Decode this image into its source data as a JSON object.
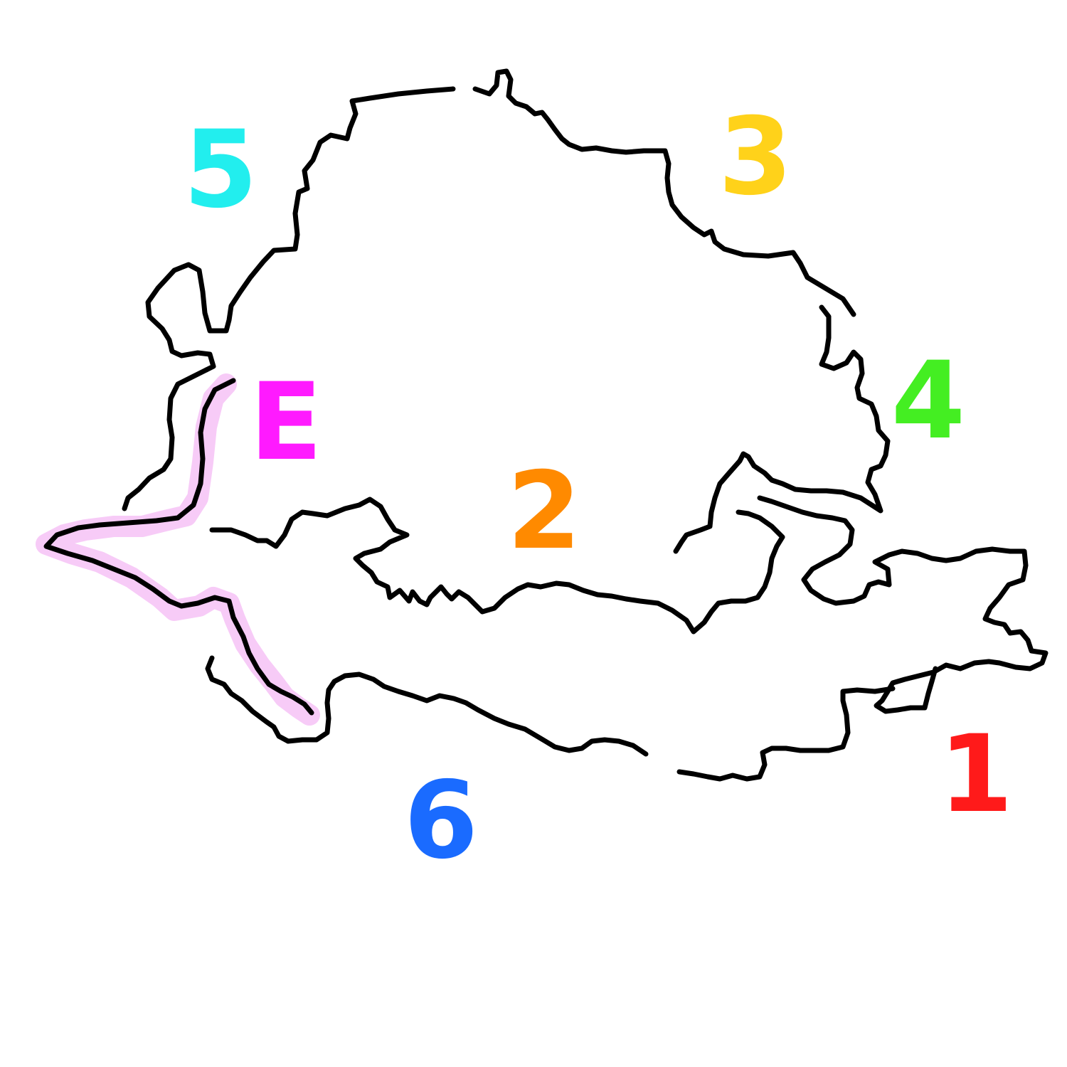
{
  "labels": {
    "one": {
      "text": "1",
      "color": "#ff1a1a"
    },
    "two": {
      "text": "2",
      "color": "#ff8a00"
    },
    "three": {
      "text": "3",
      "color": "#ffd21a"
    },
    "four": {
      "text": "4",
      "color": "#44ee22"
    },
    "five": {
      "text": "5",
      "color": "#22eeee"
    },
    "six": {
      "text": "6",
      "color": "#1a6bff"
    },
    "e": {
      "text": "E",
      "color": "#ff1aff"
    }
  },
  "colors": {
    "outline": "#000000",
    "highlight": "#f0a0f0",
    "background": "#ffffff"
  }
}
